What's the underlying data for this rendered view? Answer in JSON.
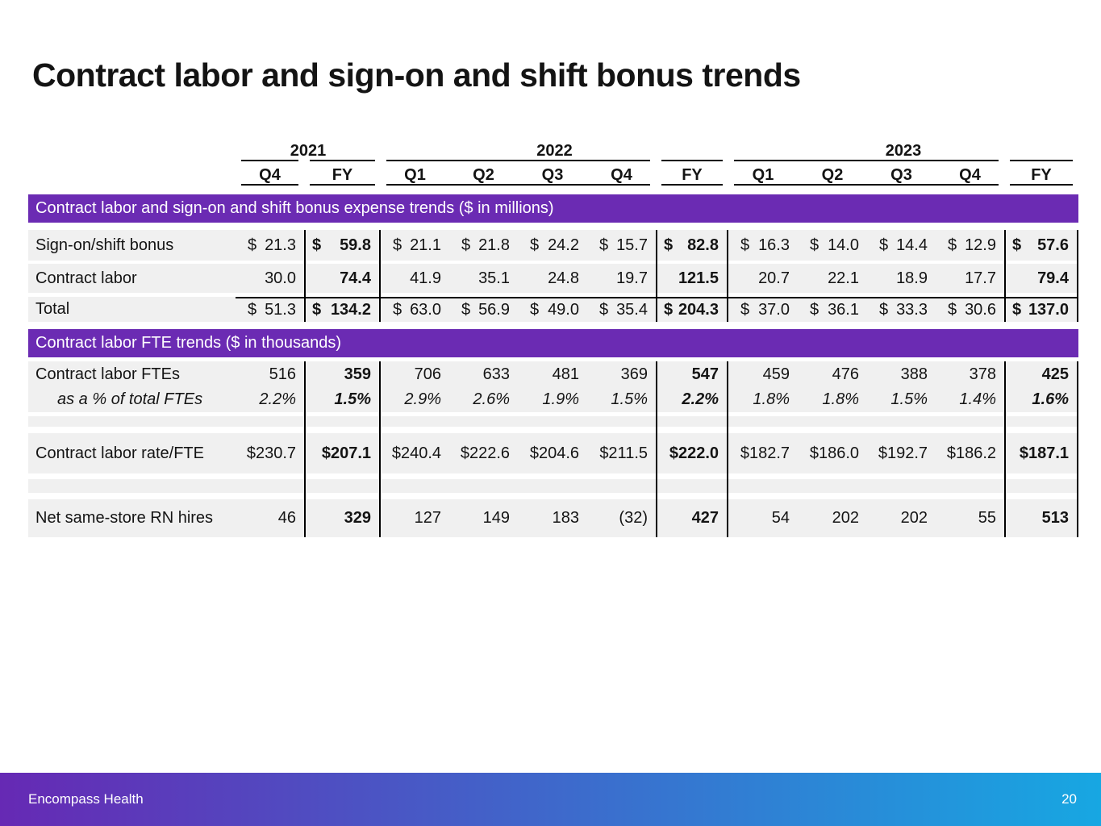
{
  "title": "Contract labor and sign-on and shift bonus trends",
  "header": {
    "years": [
      {
        "label": "2021",
        "start": 1,
        "end": 2
      },
      {
        "label": "2022",
        "start": 3,
        "end": 7
      },
      {
        "label": "2023",
        "start": 8,
        "end": 12
      }
    ],
    "columns": [
      "Q4",
      "FY",
      "Q1",
      "Q2",
      "Q3",
      "Q4",
      "FY",
      "Q1",
      "Q2",
      "Q3",
      "Q4",
      "FY"
    ]
  },
  "sections": {
    "expense": {
      "title": "Contract labor and sign-on and shift bonus expense trends ($ in millions)",
      "rows": [
        {
          "label": "Sign-on/shift bonus",
          "accounting": true,
          "values": [
            "21.3",
            "59.8",
            "21.1",
            "21.8",
            "24.2",
            "15.7",
            "82.8",
            "16.3",
            "14.0",
            "14.4",
            "12.9",
            "57.6"
          ]
        },
        {
          "label": "Contract labor",
          "accounting": false,
          "values": [
            "30.0",
            "74.4",
            "41.9",
            "35.1",
            "24.8",
            "19.7",
            "121.5",
            "20.7",
            "22.1",
            "18.9",
            "17.7",
            "79.4"
          ]
        },
        {
          "label": "Total",
          "accounting": true,
          "total": true,
          "values": [
            "51.3",
            "134.2",
            "63.0",
            "56.9",
            "49.0",
            "35.4",
            "204.3",
            "37.0",
            "36.1",
            "33.3",
            "30.6",
            "137.0"
          ]
        }
      ]
    },
    "fte": {
      "title": "Contract labor FTE trends ($ in thousands)",
      "rows": [
        {
          "label": "Contract labor FTEs",
          "values": [
            "516",
            "359",
            "706",
            "633",
            "481",
            "369",
            "547",
            "459",
            "476",
            "388",
            "378",
            "425"
          ]
        },
        {
          "label": "as a % of total FTEs",
          "italic": true,
          "indent": true,
          "values": [
            "2.2%",
            "1.5%",
            "2.9%",
            "2.6%",
            "1.9%",
            "1.5%",
            "2.2%",
            "1.8%",
            "1.8%",
            "1.5%",
            "1.4%",
            "1.6%"
          ]
        },
        {
          "label": "Contract labor rate/FTE",
          "values": [
            "$230.7",
            "$207.1",
            "$240.4",
            "$222.6",
            "$204.6",
            "$211.5",
            "$222.0",
            "$182.7",
            "$186.0",
            "$192.7",
            "$186.2",
            "$187.1"
          ]
        },
        {
          "label": "Net same-store RN hires",
          "values": [
            "46",
            "329",
            "127",
            "149",
            "183",
            "(32)",
            "427",
            "54",
            "202",
            "202",
            "55",
            "513"
          ]
        }
      ]
    }
  },
  "footer": {
    "brand": "Encompass Health",
    "page": "20"
  },
  "colors": {
    "accent_purple": "#6B2BB3",
    "footer_gradient_start": "#6629B4",
    "footer_gradient_end": "#17A7E2",
    "row_gray": "#F0F0F0"
  }
}
